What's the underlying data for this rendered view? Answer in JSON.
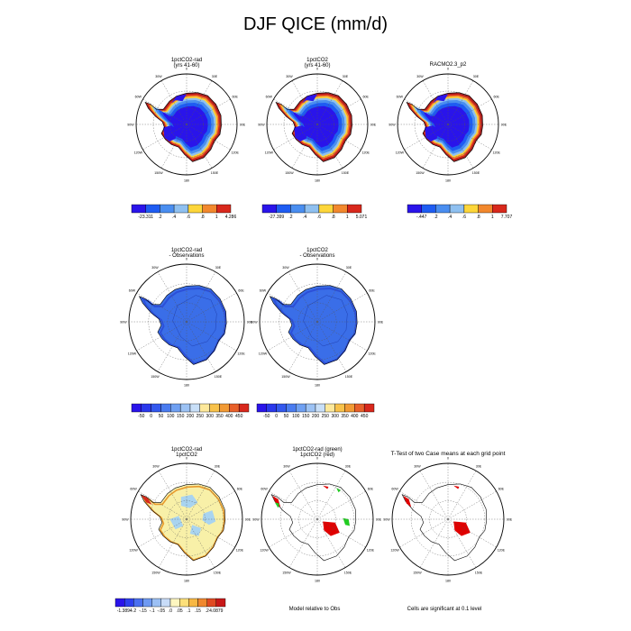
{
  "title": "DJF QICE (mm/d)",
  "colors": {
    "ice_blue_deep": "#2a14ea",
    "ice_blue": "#1e5cf2",
    "ice_mid_blue": "#4a8ef0",
    "ice_light_blue": "#8fc0f0",
    "ice_yellow": "#fdd63a",
    "ice_orange": "#f2882d",
    "ice_red": "#d8281c",
    "ice_dark_red": "#9e1a1a",
    "diff_blue": "#3a6ee8",
    "diff_blue_dark": "#2c4fd8",
    "pale_yellow": "#f8f0a8",
    "sig_red": "#e00000",
    "sig_green": "#22cc22"
  },
  "chart_data": [
    {
      "id": "p1",
      "type": "heatmap",
      "title": [
        "1pctCO2-rad",
        "(yrs 41-60)"
      ],
      "style": "ice",
      "colorbar": {
        "kind": "rel",
        "labels": [
          "-23.311",
          ".2",
          ".4",
          ".6",
          ".8",
          "1",
          "4.286"
        ]
      }
    },
    {
      "id": "p2",
      "type": "heatmap",
      "title": [
        "1pctCO2",
        "(yrs 41-60)"
      ],
      "style": "ice",
      "colorbar": {
        "kind": "rel",
        "labels": [
          "-27.399",
          ".2",
          ".4",
          ".6",
          ".8",
          "1",
          "5.071"
        ]
      }
    },
    {
      "id": "p3",
      "type": "heatmap",
      "title": [
        "RACMO2.3_p2"
      ],
      "style": "ice",
      "colorbar": {
        "kind": "rel",
        "labels": [
          "-.447",
          ".2",
          ".4",
          ".6",
          ".8",
          "1",
          "7.707"
        ]
      }
    },
    {
      "id": "p4",
      "type": "heatmap",
      "title": [
        "1pctCO2-rad",
        "- Observations"
      ],
      "style": "diff",
      "colorbar": {
        "kind": "abs",
        "labels": [
          "-50",
          "0",
          "50",
          "100",
          "150",
          "200",
          "250",
          "300",
          "350",
          "400",
          "450"
        ]
      }
    },
    {
      "id": "p5",
      "type": "heatmap",
      "title": [
        "1pctCO2",
        "- Observations"
      ],
      "style": "diff",
      "colorbar": {
        "kind": "abs",
        "labels": [
          "-50",
          "0",
          "50",
          "100",
          "150",
          "200",
          "250",
          "300",
          "350",
          "400",
          "450"
        ]
      }
    },
    {
      "id": "p6",
      "type": "heatmap",
      "title": [
        "1pctCO2-rad",
        "1pctCO2"
      ],
      "style": "ratio",
      "colorbar": {
        "kind": "ratio",
        "labels": [
          "-1.3894",
          "-.2",
          "-.15",
          "-.1",
          "-.05",
          ".0",
          ".05",
          ".1",
          ".15",
          ".2",
          "4.0879"
        ]
      }
    },
    {
      "id": "p7",
      "type": "heatmap",
      "title": [
        "1pctCO2-rad (green)",
        "1pctCO2 (red)"
      ],
      "style": "sig2",
      "footnote": "Model relative to Obs"
    },
    {
      "id": "p8",
      "type": "heatmap",
      "title": [
        "T-Test of two Case means at each grid point"
      ],
      "style": "ttest",
      "footnote": "Cells are significant at 0.1 level"
    }
  ],
  "map": {
    "lon_labels": [
      "0",
      "30E",
      "60E",
      "90E",
      "120E",
      "150E",
      "180",
      "150W",
      "120W",
      "90W",
      "60W",
      "30W"
    ]
  }
}
